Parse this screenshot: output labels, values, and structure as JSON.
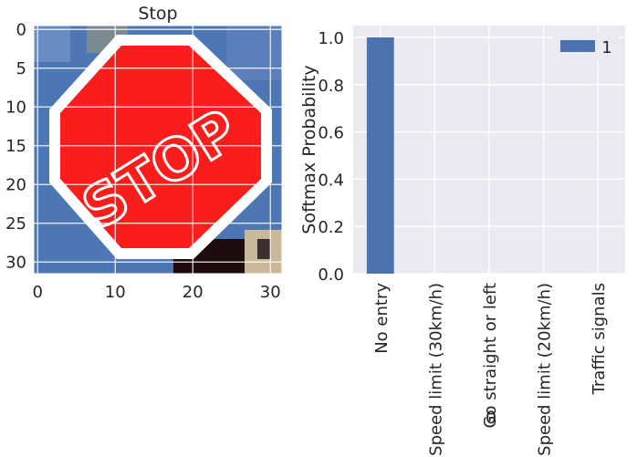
{
  "image_panel": {
    "title": "Stop",
    "x_ticks": [
      "0",
      "10",
      "20",
      "30"
    ],
    "y_ticks": [
      "0",
      "5",
      "10",
      "15",
      "20",
      "25",
      "30"
    ],
    "sign_text": "STOP"
  },
  "chart_data": {
    "type": "bar",
    "title": "",
    "xlabel": "0",
    "ylabel": "Softmax Probability",
    "categories": [
      "No entry",
      "Speed limit (30km/h)",
      "Go straight or left",
      "Speed limit (20km/h)",
      "Traffic signals"
    ],
    "series": [
      {
        "name": "1",
        "values": [
          1.0,
          0.0,
          0.0,
          0.0,
          0.0
        ]
      }
    ],
    "ylim": [
      0,
      1.05
    ],
    "y_ticks": [
      "0.0",
      "0.2",
      "0.4",
      "0.6",
      "0.8",
      "1.0"
    ],
    "grid": true,
    "legend": "top-right",
    "colors": {
      "bar": "#4c72b0",
      "background": "#eaeaf2",
      "grid": "#ffffff"
    }
  }
}
